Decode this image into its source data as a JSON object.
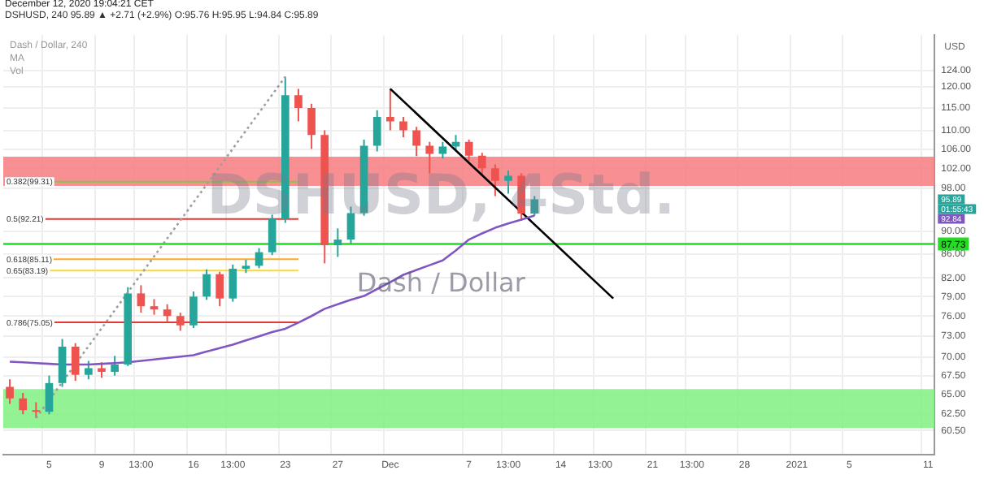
{
  "chart_data": {
    "type": "candlestick",
    "title": "Dash / Dollar, 240",
    "subtitle": "DSHUSD, 240  95.89 ▲ +2.71 (+2.9%) O:95.76 H:95.95 L:94.84 C:95.89",
    "annotations": [
      "December 12, 2020 19:04:21 CET",
      "MA",
      "Vol",
      "DSHUSD, 4Std.",
      "Dash / Dollar",
      "USD",
      "95.89",
      "01:55:43",
      "92.84"
    ],
    "categories": [
      null,
      null,
      null,
      "5",
      null,
      null,
      null,
      "9",
      null,
      null,
      "13:00",
      null,
      null,
      null,
      "16",
      null,
      null,
      "13:00",
      null,
      null,
      null,
      "23",
      null,
      null,
      null,
      "27",
      null,
      null,
      null,
      "Dec",
      null,
      null,
      null,
      null,
      null,
      "7",
      null,
      null,
      "13:00",
      null,
      null,
      null,
      "14",
      null,
      null,
      "13:00",
      null,
      null,
      null,
      "21",
      null,
      null,
      "13:00",
      null,
      null,
      null,
      "28",
      null,
      null,
      null,
      "2021",
      null,
      null,
      null,
      "5",
      null,
      null,
      null,
      null,
      null,
      "11"
    ],
    "ohlc": [
      [
        66.0,
        67.0,
        63.8,
        64.5
      ],
      [
        64.5,
        65.2,
        62.5,
        63.0
      ],
      [
        63.0,
        64.0,
        62.02,
        62.8
      ],
      [
        62.8,
        67.5,
        62.5,
        66.5
      ],
      [
        66.5,
        72.6,
        66.0,
        71.5
      ],
      [
        71.5,
        72.0,
        66.8,
        67.6
      ],
      [
        67.6,
        69.5,
        67.0,
        68.5
      ],
      [
        68.5,
        69.3,
        67.2,
        68.0
      ],
      [
        68.0,
        70.2,
        67.5,
        69.0
      ],
      [
        69.0,
        80.5,
        68.8,
        79.5
      ],
      [
        79.5,
        80.8,
        76.5,
        77.5
      ],
      [
        77.5,
        78.6,
        76.2,
        77.0
      ],
      [
        77.0,
        77.8,
        75.2,
        76.0
      ],
      [
        76.0,
        76.5,
        73.8,
        74.6
      ],
      [
        74.6,
        79.8,
        74.2,
        79.0
      ],
      [
        79.0,
        83.4,
        78.5,
        82.6
      ],
      [
        82.6,
        83.0,
        77.5,
        78.7
      ],
      [
        78.7,
        84.2,
        78.2,
        83.5
      ],
      [
        83.5,
        85.0,
        82.8,
        84.0
      ],
      [
        84.0,
        87.0,
        83.6,
        86.3
      ],
      [
        86.3,
        93.0,
        85.8,
        92.2
      ],
      [
        92.2,
        122.4,
        91.5,
        118.0
      ],
      [
        118.0,
        119.5,
        112.0,
        115.0
      ],
      [
        115.0,
        116.0,
        106.0,
        109.0
      ],
      [
        109.0,
        110.0,
        84.4,
        87.5
      ],
      [
        87.5,
        90.5,
        85.5,
        88.5
      ],
      [
        88.5,
        94.5,
        87.8,
        93.3
      ],
      [
        93.3,
        108.0,
        92.8,
        106.7
      ],
      [
        106.7,
        114.5,
        105.5,
        113.0
      ],
      [
        113.0,
        119.5,
        110.0,
        112.0
      ],
      [
        112.0,
        113.0,
        108.5,
        110.0
      ],
      [
        110.0,
        110.8,
        104.5,
        106.7
      ],
      [
        106.7,
        107.5,
        101.0,
        105.0
      ],
      [
        105.0,
        107.5,
        104.0,
        106.5
      ],
      [
        106.5,
        109.0,
        105.8,
        107.5
      ],
      [
        107.5,
        108.0,
        103.5,
        104.6
      ],
      [
        104.6,
        105.2,
        100.5,
        102.0
      ],
      [
        102.0,
        102.8,
        96.5,
        99.5
      ],
      [
        99.5,
        101.5,
        97.0,
        100.5
      ],
      [
        100.5,
        101.0,
        91.9,
        93.2
      ],
      [
        93.2,
        96.5,
        92.8,
        95.89
      ],
      null,
      null,
      null,
      null,
      null,
      null,
      null,
      null,
      null,
      null,
      null,
      null,
      null,
      null,
      null,
      null,
      null,
      null,
      null,
      null,
      null,
      null,
      null,
      null,
      null,
      null,
      null,
      null,
      null,
      null
    ],
    "colors": [
      "#ef5350",
      "#ef5350",
      "#ef5350",
      "#26a69a",
      "#26a69a",
      "#ef5350",
      "#26a69a",
      "#ef5350",
      "#26a69a",
      "#26a69a",
      "#ef5350",
      "#ef5350",
      "#ef5350",
      "#ef5350",
      "#26a69a",
      "#26a69a",
      "#ef5350",
      "#26a69a",
      "#26a69a",
      "#26a69a",
      "#26a69a",
      "#26a69a",
      "#ef5350",
      "#ef5350",
      "#ef5350",
      "#26a69a",
      "#26a69a",
      "#26a69a",
      "#26a69a",
      "#ef5350",
      "#ef5350",
      "#ef5350",
      "#ef5350",
      "#26a69a",
      "#26a69a",
      "#ef5350",
      "#ef5350",
      "#ef5350",
      "#26a69a",
      "#ef5350",
      "#26a69a",
      null,
      null,
      null,
      null,
      null,
      null,
      null,
      null,
      null,
      null,
      null,
      null,
      null,
      null,
      null,
      null,
      null,
      null,
      null,
      null,
      null,
      null,
      null,
      null,
      null,
      null,
      null,
      null,
      null,
      null
    ],
    "series": [
      {
        "type": "line",
        "color": "#7e57c2",
        "line_style": "solid",
        "values": [
          69.4,
          69.3,
          69.2,
          69.1,
          69.0,
          69.0,
          69.0,
          69.1,
          69.2,
          69.3,
          69.5,
          69.7,
          69.9,
          70.1,
          70.3,
          70.8,
          71.3,
          71.8,
          72.4,
          73.0,
          73.6,
          74.1,
          75.0,
          76.0,
          77.1,
          77.8,
          78.5,
          79.1,
          80.2,
          81.3,
          82.5,
          83.3,
          84.1,
          84.9,
          86.6,
          88.5,
          89.6,
          90.6,
          91.4,
          92.1,
          92.84,
          null,
          null,
          null,
          null,
          null,
          null,
          null,
          null,
          null,
          null,
          null,
          null,
          null,
          null,
          null,
          null,
          null,
          null,
          null,
          null,
          null,
          null,
          null,
          null,
          null,
          null,
          null,
          null,
          null,
          null
        ]
      },
      {
        "type": "line",
        "color": "#000000",
        "line_style": "solid",
        "values": [
          null,
          null,
          null,
          null,
          null,
          null,
          null,
          null,
          null,
          null,
          null,
          null,
          null,
          null,
          null,
          null,
          null,
          null,
          null,
          null,
          null,
          null,
          null,
          null,
          null,
          null,
          null,
          null,
          null,
          119.5,
          null,
          null,
          null,
          null,
          null,
          null,
          null,
          null,
          null,
          null,
          null,
          null,
          null,
          null,
          null,
          null,
          78.7,
          null,
          null,
          null,
          null,
          null,
          null,
          null,
          null,
          null,
          null,
          null,
          null,
          null,
          null,
          null,
          null,
          null,
          null,
          null,
          null,
          null,
          null,
          null,
          null
        ]
      },
      {
        "type": "line",
        "color": "#9e9e9e",
        "line_style": "dotted",
        "values": [
          null,
          null,
          62.02,
          null,
          null,
          null,
          null,
          null,
          null,
          null,
          null,
          null,
          null,
          null,
          null,
          null,
          null,
          null,
          null,
          null,
          null,
          122.4,
          null,
          null,
          null,
          null,
          null,
          null,
          null,
          null,
          null,
          null,
          null,
          null,
          null,
          null,
          null,
          null,
          null,
          null,
          null,
          null,
          null,
          null,
          null,
          null,
          null,
          null,
          null,
          null,
          null,
          null,
          null,
          null,
          null,
          null,
          null,
          null,
          null,
          null,
          null,
          null,
          null,
          null,
          null,
          null,
          null,
          null,
          null,
          null,
          null
        ]
      }
    ],
    "bands": [
      {
        "axis": "y",
        "from": 98.5,
        "to": 104.4,
        "color": "#f77c80"
      },
      {
        "axis": "y",
        "from": 60.8,
        "to": 65.7,
        "color": "#80f080"
      }
    ],
    "ref_lines": [
      {
        "axis": "y",
        "value": 87.73,
        "label": "87.73",
        "color": "#22dd22"
      },
      {
        "axis": "y",
        "value": 99.31,
        "label": "0.382(99.31)",
        "color": "#8bc34a"
      },
      {
        "axis": "y",
        "value": 92.21,
        "label": "0.5(92.21)",
        "color": "#e53935"
      },
      {
        "axis": "y",
        "value": 85.11,
        "label": "0.618(85.11)",
        "color": "#ffa726"
      },
      {
        "axis": "y",
        "value": 83.19,
        "label": "0.65(83.19)",
        "color": "#fdd835"
      },
      {
        "axis": "y",
        "value": 75.05,
        "label": "0.786(75.05)",
        "color": "#e53935"
      }
    ],
    "ylim": [
      57.7,
      133
    ],
    "log": "y",
    "grid": true,
    "marker": "none",
    "yticks": [
      {
        "value": 124,
        "label": "124.00"
      },
      {
        "value": 120,
        "label": "120.00"
      },
      {
        "value": 115,
        "label": "115.00"
      },
      {
        "value": 110,
        "label": "110.00"
      },
      {
        "value": 106,
        "label": "106.00"
      },
      {
        "value": 102,
        "label": "102.00"
      },
      {
        "value": 98,
        "label": "98.00"
      },
      {
        "value": 90,
        "label": "90.00"
      },
      {
        "value": 86,
        "label": "86.00"
      },
      {
        "value": 82,
        "label": "82.00"
      },
      {
        "value": 79,
        "label": "79.00"
      },
      {
        "value": 76,
        "label": "76.00"
      },
      {
        "value": 73,
        "label": "73.00"
      },
      {
        "value": 70,
        "label": "70.00"
      },
      {
        "value": 67.5,
        "label": "67.50"
      },
      {
        "value": 65,
        "label": "65.00"
      },
      {
        "value": 62.5,
        "label": "62.50"
      },
      {
        "value": 60.5,
        "label": "60.50"
      }
    ]
  }
}
